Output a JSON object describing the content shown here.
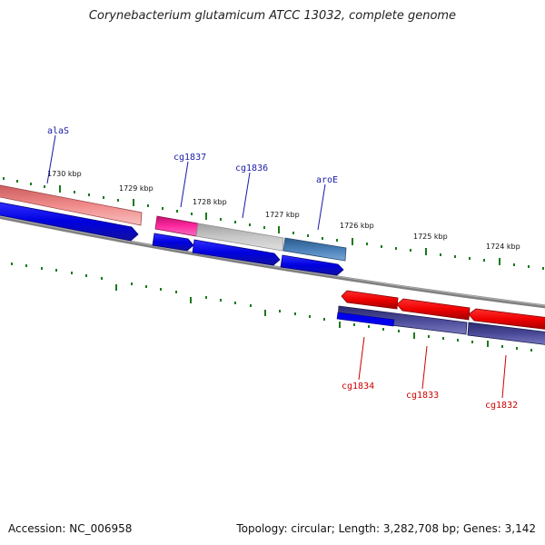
{
  "title": "Corynebacterium glutamicum ATCC 13032, complete genome",
  "accession": "Accession: NC_006958",
  "summary": "Topology: circular; Length: 3,282,708 bp; Genes: 3,142",
  "ticks": [
    "1730 kbp",
    "1729 kbp",
    "1728 kbp",
    "1727 kbp",
    "1726 kbp",
    "1725 kbp",
    "1724 kbp"
  ],
  "genes_top": [
    "alaS",
    "cg1837",
    "cg1836",
    "aroE"
  ],
  "genes_bottom": [
    "cg1834",
    "cg1833",
    "cg1832"
  ],
  "colors": {
    "forward_label": "#1a1aa8",
    "reverse_label": "#cc0000",
    "tick": "#1a7a1a",
    "backbone": "#808080"
  }
}
